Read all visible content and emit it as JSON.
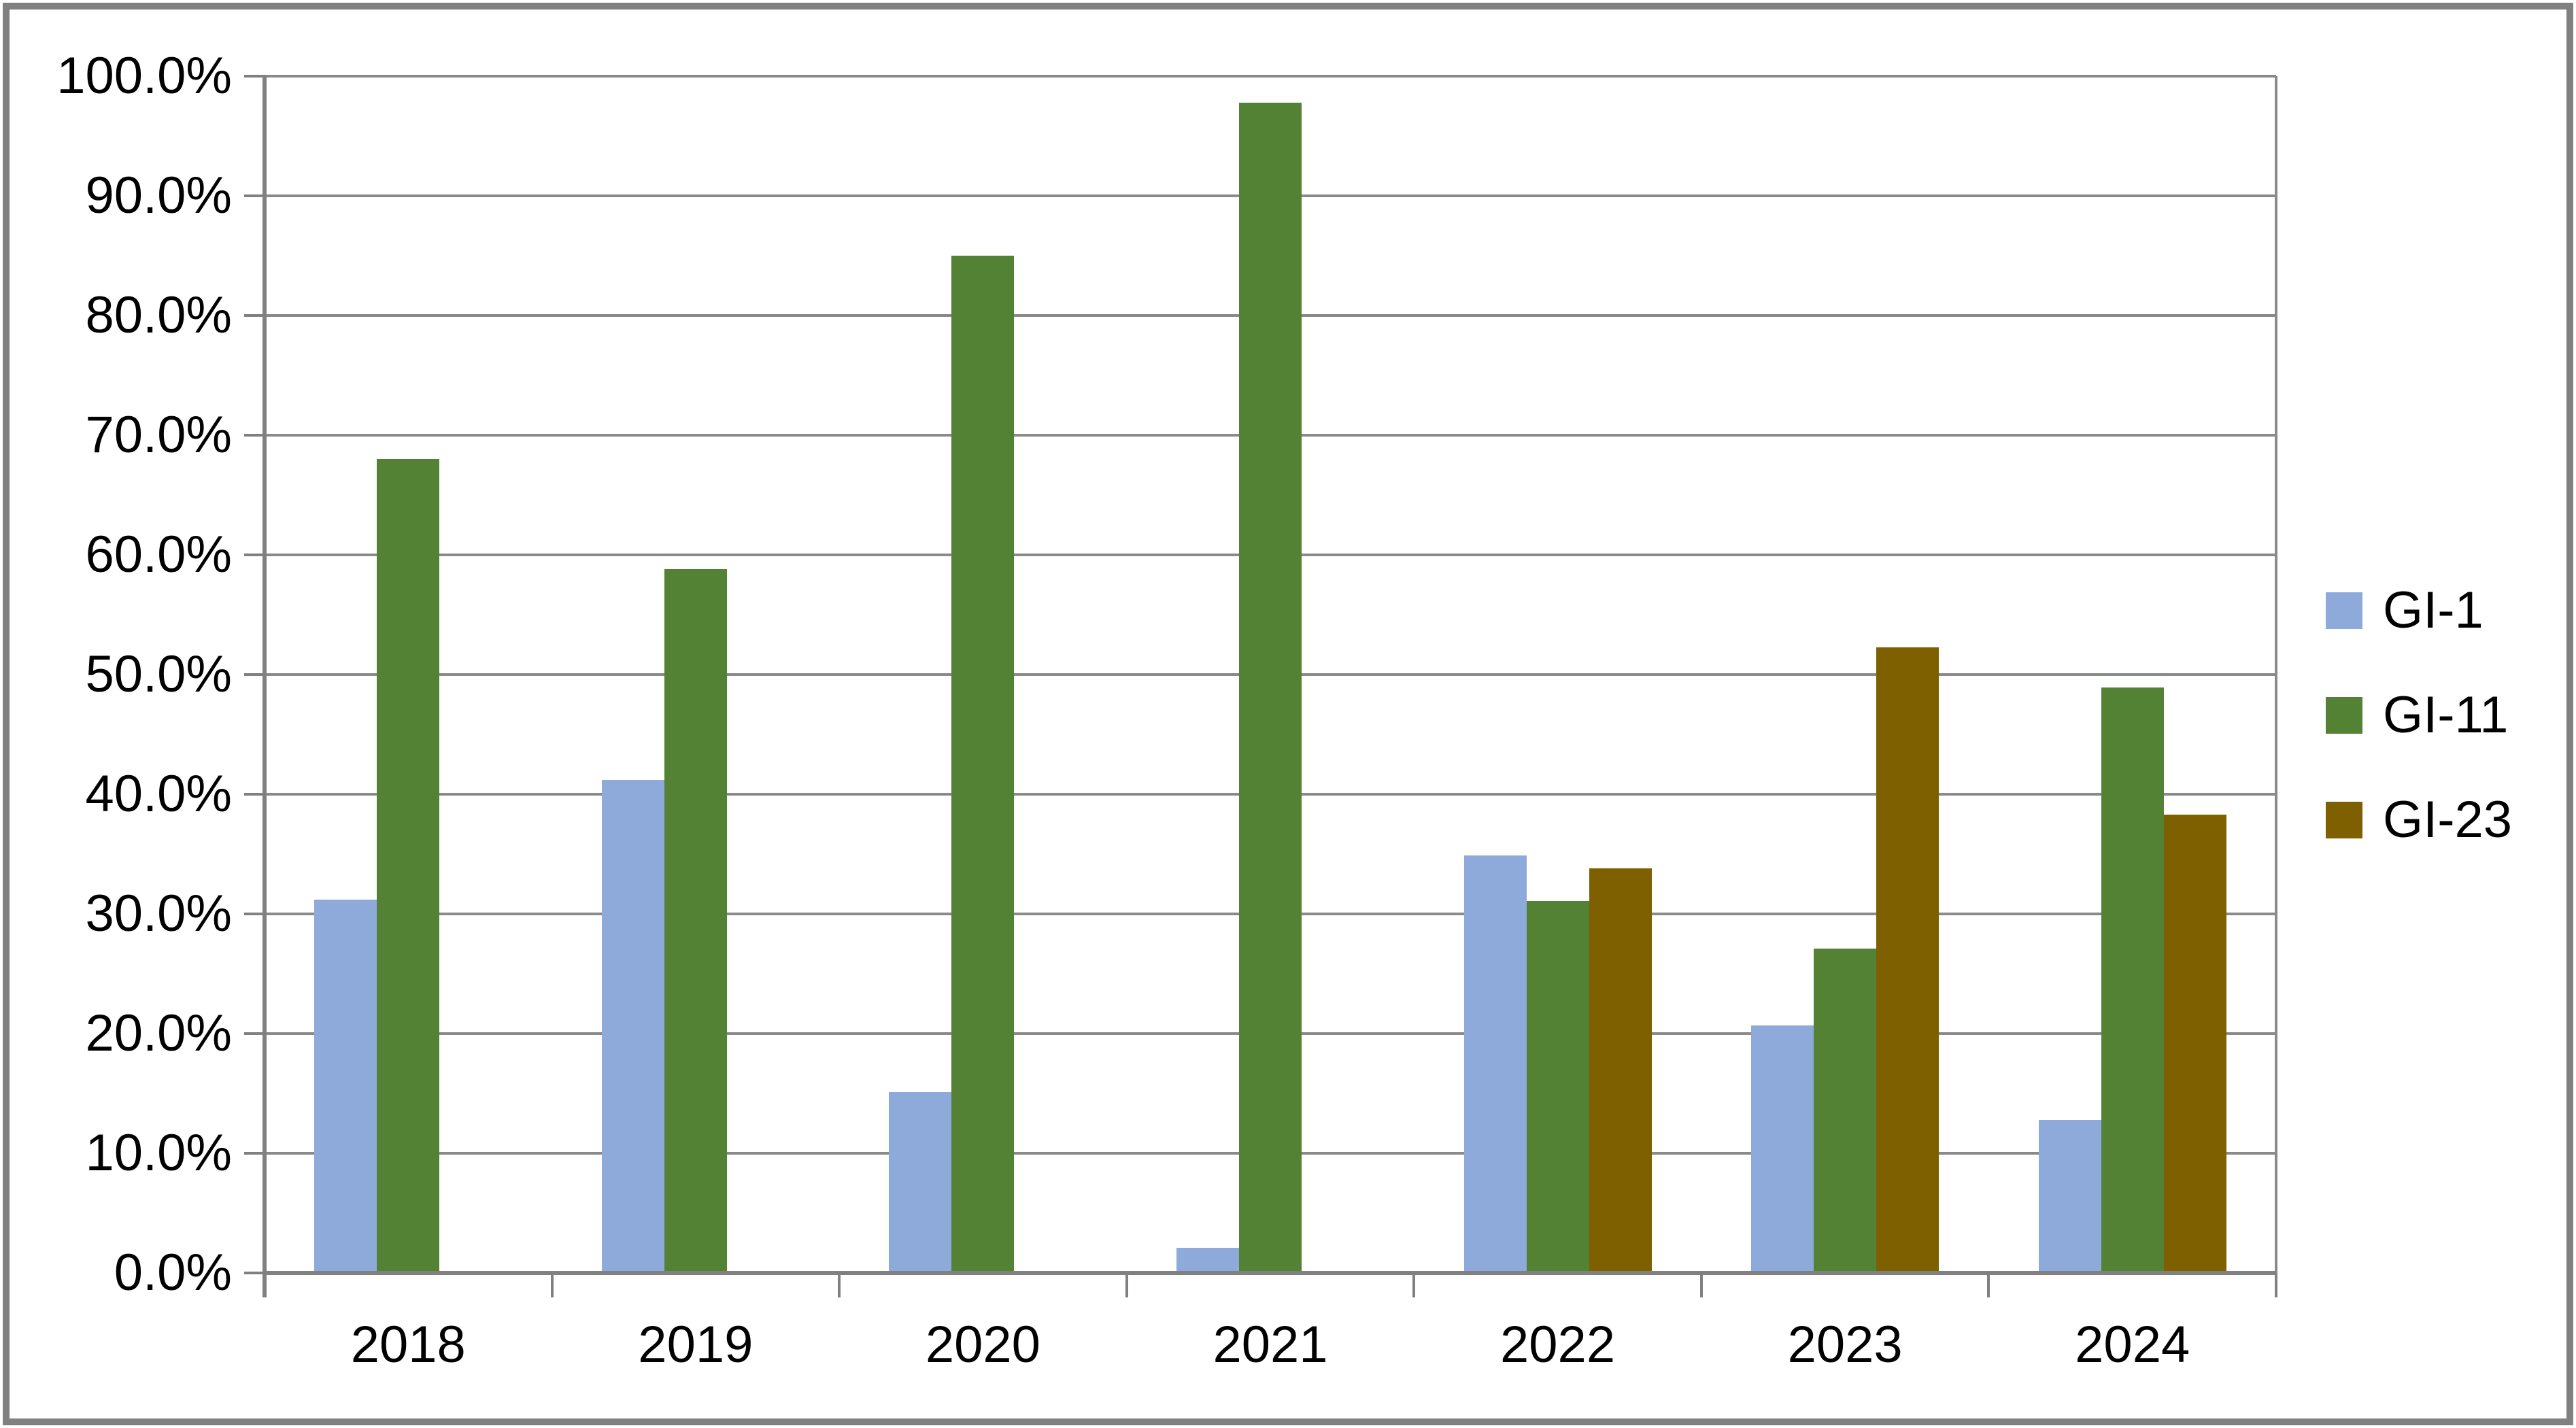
{
  "chart_data": {
    "type": "bar",
    "title": "",
    "xlabel": "",
    "ylabel": "",
    "categories": [
      "2018",
      "2019",
      "2020",
      "2021",
      "2022",
      "2023",
      "2024"
    ],
    "series": [
      {
        "name": "GI-1",
        "color": "#8EAADB",
        "values": [
          31.2,
          41.2,
          15.1,
          2.1,
          34.9,
          20.7,
          12.8
        ]
      },
      {
        "name": "GI-11",
        "color": "#548235",
        "values": [
          68.0,
          58.8,
          85.0,
          97.8,
          31.1,
          27.1,
          48.9
        ]
      },
      {
        "name": "GI-23",
        "color": "#7F6000",
        "values": [
          null,
          null,
          null,
          null,
          33.8,
          52.3,
          38.3
        ]
      }
    ],
    "ylim": [
      0,
      100
    ],
    "ytick_step": 10,
    "ytick_labels": [
      "0.0%",
      "10.0%",
      "20.0%",
      "30.0%",
      "40.0%",
      "50.0%",
      "60.0%",
      "70.0%",
      "80.0%",
      "90.0%",
      "100.0%"
    ],
    "value_format": "percent_one_decimal",
    "grid": true,
    "legend_position": "right",
    "grid_color": "#8A8A8A",
    "axis_color": "#808080",
    "background": "#FFFFFF",
    "border_color": "#808080"
  }
}
